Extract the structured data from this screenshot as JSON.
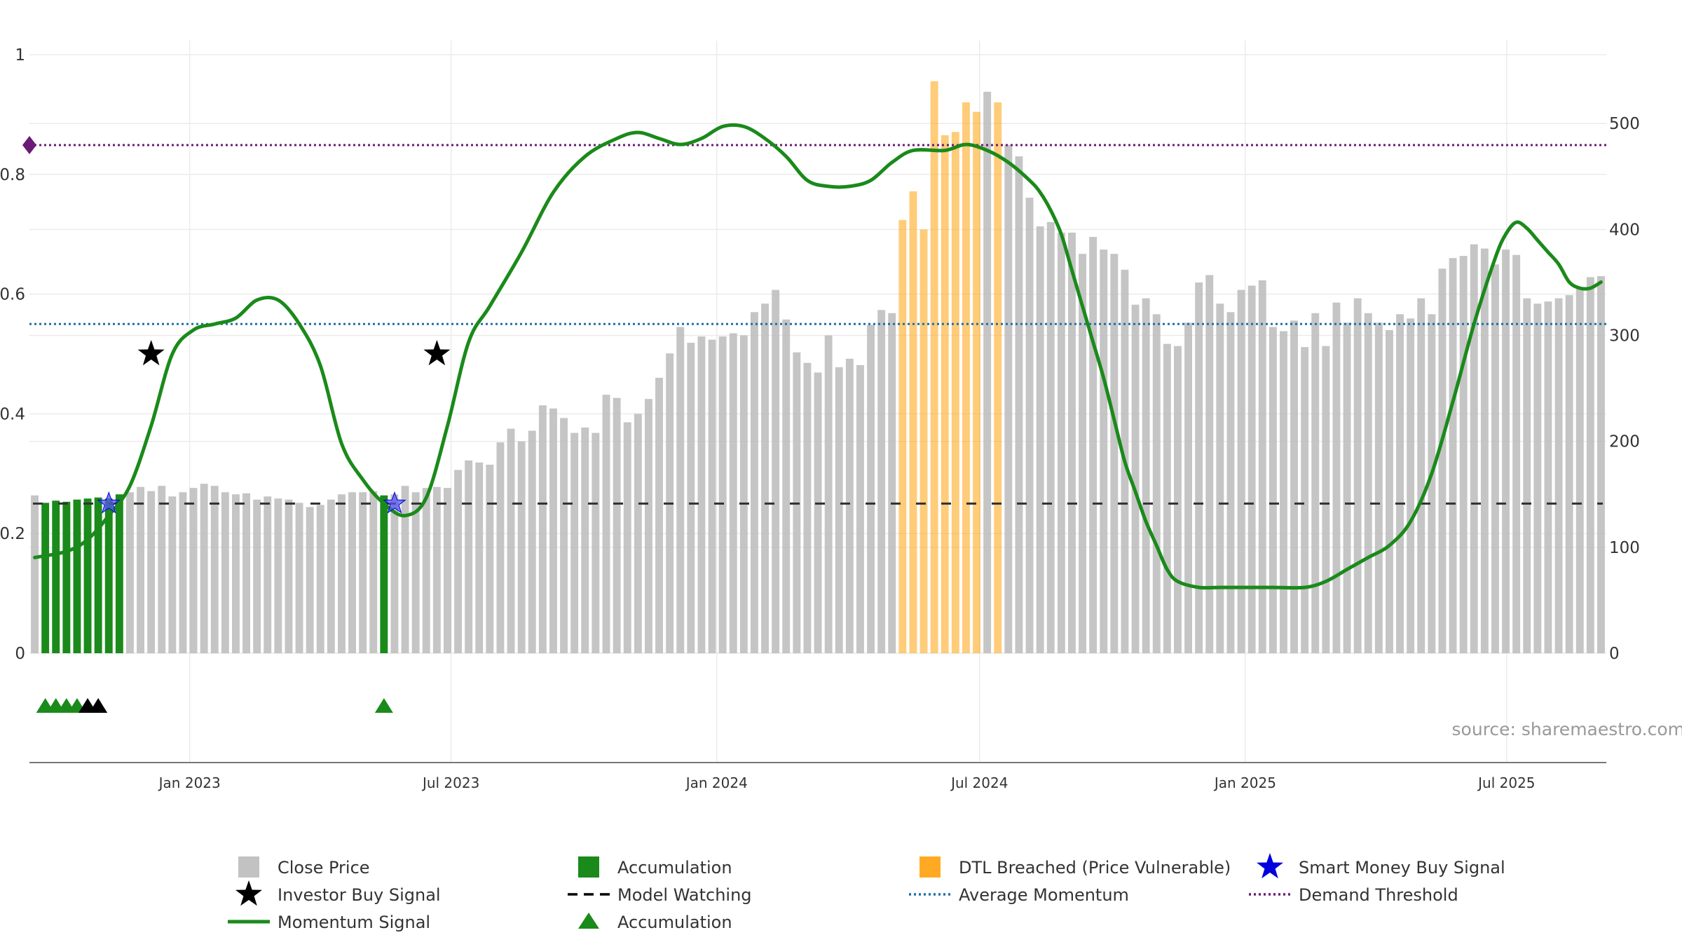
{
  "chart_data": {
    "type": "bar",
    "title": "",
    "left_axis": {
      "range": [
        0,
        1
      ],
      "ticks": [
        0,
        0.2,
        0.4,
        0.6,
        0.8,
        1
      ],
      "tick_labels": [
        "0",
        "0.2",
        "0.4",
        "0.6",
        "0.8",
        "1"
      ]
    },
    "right_axis": {
      "range": [
        0,
        565
      ],
      "ticks": [
        0,
        100,
        200,
        300,
        400,
        500
      ],
      "tick_labels": [
        "0",
        "100",
        "200",
        "300",
        "400",
        "500"
      ]
    },
    "x_axis": {
      "start": "2022-09-12",
      "end": "2025-09-08",
      "period": "weekly",
      "ticks": [
        {
          "date": "2023-01-01",
          "label": "Jan 2023"
        },
        {
          "date": "2023-07-01",
          "label": "Jul 2023"
        },
        {
          "date": "2024-01-01",
          "label": "Jan 2024"
        },
        {
          "date": "2024-07-01",
          "label": "Jul 2024"
        },
        {
          "date": "2025-01-01",
          "label": "Jan 2025"
        },
        {
          "date": "2025-07-01",
          "label": "Jul 2025"
        }
      ]
    },
    "close_price": [
      149,
      142,
      144,
      143,
      145,
      146,
      147,
      146,
      150,
      152,
      157,
      153,
      158,
      148,
      152,
      156,
      160,
      158,
      152,
      150,
      151,
      145,
      148,
      146,
      145,
      142,
      138,
      140,
      145,
      150,
      152,
      152,
      153,
      149,
      150,
      158,
      152,
      156,
      157,
      156,
      173,
      182,
      180,
      178,
      199,
      212,
      200,
      210,
      234,
      231,
      222,
      208,
      213,
      208,
      244,
      241,
      218,
      226,
      240,
      260,
      283,
      308,
      293,
      299,
      296,
      299,
      302,
      300,
      322,
      330,
      343,
      315,
      284,
      274,
      265,
      300,
      270,
      278,
      272,
      310,
      324,
      321,
      409,
      436,
      400,
      540,
      489,
      492,
      520,
      511,
      530,
      520,
      480,
      469,
      430,
      403,
      407,
      397,
      397,
      377,
      393,
      381,
      377,
      362,
      329,
      335,
      320,
      292,
      290,
      312,
      350,
      357,
      330,
      322,
      343,
      347,
      352,
      308,
      304,
      314,
      289,
      321,
      290,
      331,
      312,
      335,
      321,
      312,
      305,
      320,
      316,
      335,
      320,
      363,
      373,
      375,
      386,
      382,
      367,
      381,
      376,
      335,
      330,
      332,
      335,
      338,
      345,
      355,
      356
    ],
    "accumulation_weeks": [
      1,
      2,
      3,
      4,
      5,
      6,
      7,
      8,
      33
    ],
    "dtl_breached_weeks": [
      82,
      83,
      84,
      85,
      86,
      87,
      88,
      89,
      91
    ],
    "momentum_signal": [
      [
        0,
        0.16
      ],
      [
        3,
        0.17
      ],
      [
        5,
        0.19
      ],
      [
        7,
        0.23
      ],
      [
        9,
        0.28
      ],
      [
        11,
        0.38
      ],
      [
        13,
        0.5
      ],
      [
        15,
        0.54
      ],
      [
        17,
        0.55
      ],
      [
        19,
        0.56
      ],
      [
        21,
        0.59
      ],
      [
        23,
        0.59
      ],
      [
        25,
        0.55
      ],
      [
        27,
        0.48
      ],
      [
        29,
        0.35
      ],
      [
        31,
        0.29
      ],
      [
        33,
        0.25
      ],
      [
        35,
        0.23
      ],
      [
        37,
        0.26
      ],
      [
        39,
        0.38
      ],
      [
        41,
        0.52
      ],
      [
        43,
        0.58
      ],
      [
        46,
        0.67
      ],
      [
        49,
        0.77
      ],
      [
        52,
        0.83
      ],
      [
        55,
        0.86
      ],
      [
        57,
        0.87
      ],
      [
        59,
        0.86
      ],
      [
        61,
        0.85
      ],
      [
        63,
        0.86
      ],
      [
        65,
        0.88
      ],
      [
        67,
        0.88
      ],
      [
        69,
        0.86
      ],
      [
        71,
        0.83
      ],
      [
        73,
        0.79
      ],
      [
        75,
        0.78
      ],
      [
        77,
        0.78
      ],
      [
        79,
        0.79
      ],
      [
        81,
        0.82
      ],
      [
        83,
        0.84
      ],
      [
        86,
        0.84
      ],
      [
        88,
        0.85
      ],
      [
        90,
        0.84
      ],
      [
        92,
        0.82
      ],
      [
        94,
        0.79
      ],
      [
        95,
        0.77
      ],
      [
        96,
        0.74
      ],
      [
        97,
        0.7
      ],
      [
        98,
        0.64
      ],
      [
        99,
        0.58
      ],
      [
        100,
        0.52
      ],
      [
        101,
        0.46
      ],
      [
        102,
        0.39
      ],
      [
        103,
        0.32
      ],
      [
        104,
        0.27
      ],
      [
        105,
        0.22
      ],
      [
        106,
        0.18
      ],
      [
        107,
        0.14
      ],
      [
        108,
        0.12
      ],
      [
        110,
        0.11
      ],
      [
        112,
        0.11
      ],
      [
        114,
        0.11
      ],
      [
        117,
        0.11
      ],
      [
        120,
        0.11
      ],
      [
        122,
        0.12
      ],
      [
        124,
        0.14
      ],
      [
        126,
        0.16
      ],
      [
        128,
        0.18
      ],
      [
        130,
        0.22
      ],
      [
        132,
        0.3
      ],
      [
        134,
        0.42
      ],
      [
        136,
        0.55
      ],
      [
        138,
        0.66
      ],
      [
        139,
        0.7
      ],
      [
        140,
        0.72
      ],
      [
        141,
        0.71
      ],
      [
        142,
        0.69
      ],
      [
        143,
        0.67
      ],
      [
        144,
        0.65
      ],
      [
        145,
        0.62
      ],
      [
        146,
        0.61
      ],
      [
        147,
        0.61
      ],
      [
        148,
        0.62
      ]
    ],
    "average_momentum": 0.55,
    "demand_threshold": 0.849,
    "model_watching_level": 0.25,
    "investor_buy_signals": [
      {
        "week": 11,
        "value": 0.5
      },
      {
        "week": 38,
        "value": 0.5
      }
    ],
    "smart_money_buy_signals": [
      {
        "week": 7,
        "value": 0.25
      },
      {
        "week": 34,
        "value": 0.25
      }
    ],
    "accumulation_triangles": [
      {
        "week": 1,
        "color": "green"
      },
      {
        "week": 2,
        "color": "green"
      },
      {
        "week": 3,
        "color": "green"
      },
      {
        "week": 4,
        "color": "green"
      },
      {
        "week": 5,
        "color": "black"
      },
      {
        "week": 6,
        "color": "black"
      },
      {
        "week": 33,
        "color": "green"
      }
    ],
    "legend": [
      {
        "label": "Close Price",
        "symbol": "square",
        "color": "#bbbbbb"
      },
      {
        "label": "Accumulation",
        "symbol": "square",
        "color": "#1a8a1a"
      },
      {
        "label": "DTL Breached (Price Vulnerable)",
        "symbol": "square",
        "color": "#ffaa22"
      },
      {
        "label": "Smart Money Buy Signal",
        "symbol": "star",
        "color": "#0000dd"
      },
      {
        "label": "Investor Buy Signal",
        "symbol": "star",
        "color": "#000000"
      },
      {
        "label": "Model Watching",
        "symbol": "dash",
        "color": "#000000"
      },
      {
        "label": "Average Momentum",
        "symbol": "dotted",
        "color": "#1f6fa8"
      },
      {
        "label": "Demand Threshold",
        "symbol": "dotted",
        "color": "#6b1a75"
      },
      {
        "label": "Momentum Signal",
        "symbol": "line",
        "color": "#1a8a1a"
      },
      {
        "label": "Accumulation",
        "symbol": "triangle",
        "color": "#1a8a1a"
      }
    ],
    "legend_position": "bottom-center",
    "source": "source: sharemaestro.com"
  },
  "colors": {
    "close_price": "#bbbbbb",
    "accumulation": "#1a8a1a",
    "dtl": "#ffaa22",
    "momentum": "#1a8a1a",
    "average_momentum": "#1f6fa8",
    "demand_threshold": "#6b1a75",
    "smart_money": "#0000dd",
    "investor": "#000000",
    "grid": "#ebebeb"
  }
}
